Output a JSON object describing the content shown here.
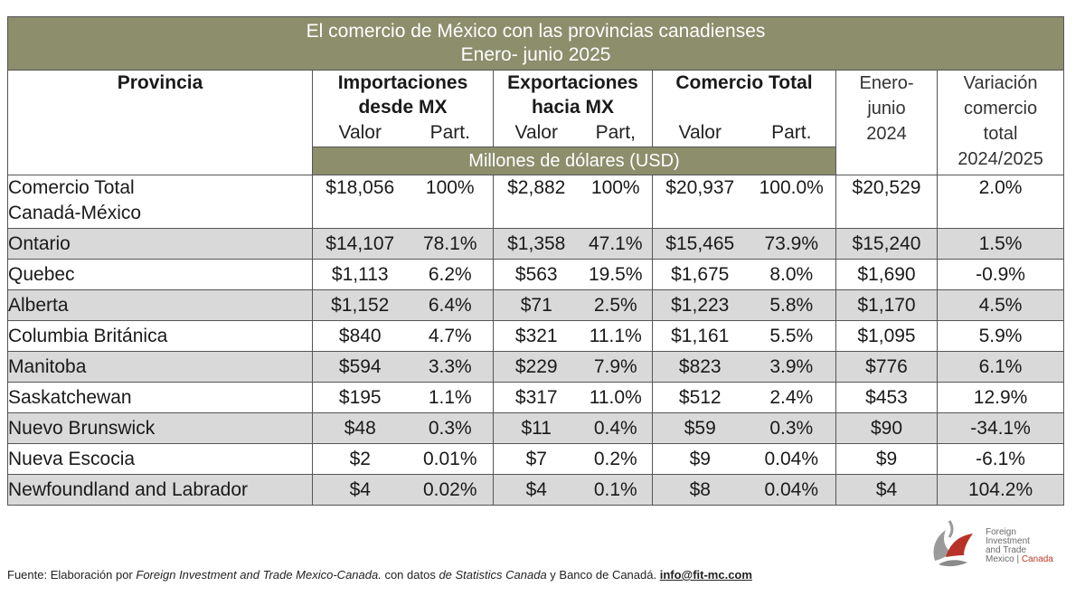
{
  "title": {
    "line1": "El comercio de México con las provincias canadienses",
    "line2": "Enero- junio 2025"
  },
  "headers": {
    "provincia": "Provincia",
    "importaciones_l1": "Importaciones",
    "importaciones_l2": "desde MX",
    "exportaciones_l1": "Exportaciones",
    "exportaciones_l2": "hacia MX",
    "comercio_total": "Comercio Total",
    "ene_jun_l1": "Enero-",
    "ene_jun_l2": "junio",
    "ene_jun_l3": "2024",
    "variacion_l1": "Variación",
    "variacion_l2": "comercio",
    "variacion_l3": "total",
    "variacion_l4": "2024/2025",
    "valor": "Valor",
    "part": "Part.",
    "part_comma": "Part,",
    "unidad": "Millones de dólares (USD)"
  },
  "total_row": {
    "name_l1": "Comercio Total",
    "name_l2": "Canadá-México",
    "imp_valor": "$18,056",
    "imp_part": "100%",
    "exp_valor": "$2,882",
    "exp_part": "100%",
    "com_valor": "$20,937",
    "com_part": "100.0%",
    "ene_jun": "$20,529",
    "variacion": "2.0%"
  },
  "rows": [
    {
      "name": "Ontario",
      "imp_valor": "$14,107",
      "imp_part": "78.1%",
      "exp_valor": "$1,358",
      "exp_part": "47.1%",
      "com_valor": "$15,465",
      "com_part": "73.9%",
      "ene_jun": "$15,240",
      "variacion": "1.5%"
    },
    {
      "name": "Quebec",
      "imp_valor": "$1,113",
      "imp_part": "6.2%",
      "exp_valor": "$563",
      "exp_part": "19.5%",
      "com_valor": "$1,675",
      "com_part": "8.0%",
      "ene_jun": "$1,690",
      "variacion": "-0.9%"
    },
    {
      "name": "Alberta",
      "imp_valor": "$1,152",
      "imp_part": "6.4%",
      "exp_valor": "$71",
      "exp_part": "2.5%",
      "com_valor": "$1,223",
      "com_part": "5.8%",
      "ene_jun": "$1,170",
      "variacion": "4.5%"
    },
    {
      "name": "Columbia Británica",
      "imp_valor": "$840",
      "imp_part": "4.7%",
      "exp_valor": "$321",
      "exp_part": "11.1%",
      "com_valor": "$1,161",
      "com_part": "5.5%",
      "ene_jun": "$1,095",
      "variacion": "5.9%"
    },
    {
      "name": "Manitoba",
      "imp_valor": "$594",
      "imp_part": "3.3%",
      "exp_valor": "$229",
      "exp_part": "7.9%",
      "com_valor": "$823",
      "com_part": "3.9%",
      "ene_jun": "$776",
      "variacion": "6.1%"
    },
    {
      "name": "Saskatchewan",
      "imp_valor": "$195",
      "imp_part": "1.1%",
      "exp_valor": "$317",
      "exp_part": "11.0%",
      "com_valor": "$512",
      "com_part": "2.4%",
      "ene_jun": "$453",
      "variacion": "12.9%"
    },
    {
      "name": "Nuevo Brunswick",
      "imp_valor": "$48",
      "imp_part": "0.3%",
      "exp_valor": "$11",
      "exp_part": "0.4%",
      "com_valor": "$59",
      "com_part": "0.3%",
      "ene_jun": "$90",
      "variacion": "-34.1%"
    },
    {
      "name": "Nueva Escocia",
      "imp_valor": "$2",
      "imp_part": "0.01%",
      "exp_valor": "$7",
      "exp_part": "0.2%",
      "com_valor": "$9",
      "com_part": "0.04%",
      "ene_jun": "$9",
      "variacion": "-6.1%"
    },
    {
      "name": "Newfoundland and Labrador",
      "imp_valor": "$4",
      "imp_part": "0.02%",
      "exp_valor": "$4",
      "exp_part": "0.1%",
      "com_valor": "$8",
      "com_part": "0.04%",
      "ene_jun": "$4",
      "variacion": "104.2%"
    }
  ],
  "source": {
    "prefix": "Fuente: Elaboración por ",
    "org": "Foreign Investment and Trade Mexico-Canada.",
    "mid": " con datos ",
    "de_sc": "de Statistics Canada",
    "suffix": " y Banco de Canadá. ",
    "email": "info@fit-mc.com"
  },
  "logo": {
    "line1": "Foreign",
    "line2": "Investment",
    "line3": "and Trade",
    "line4": "Mexico",
    "line4_sep": " | ",
    "line4_ca": "Canada"
  },
  "colors": {
    "header_bg": "#8c8e6c",
    "alt_row_bg": "#d9d9d9",
    "logo_red": "#c0392b"
  }
}
